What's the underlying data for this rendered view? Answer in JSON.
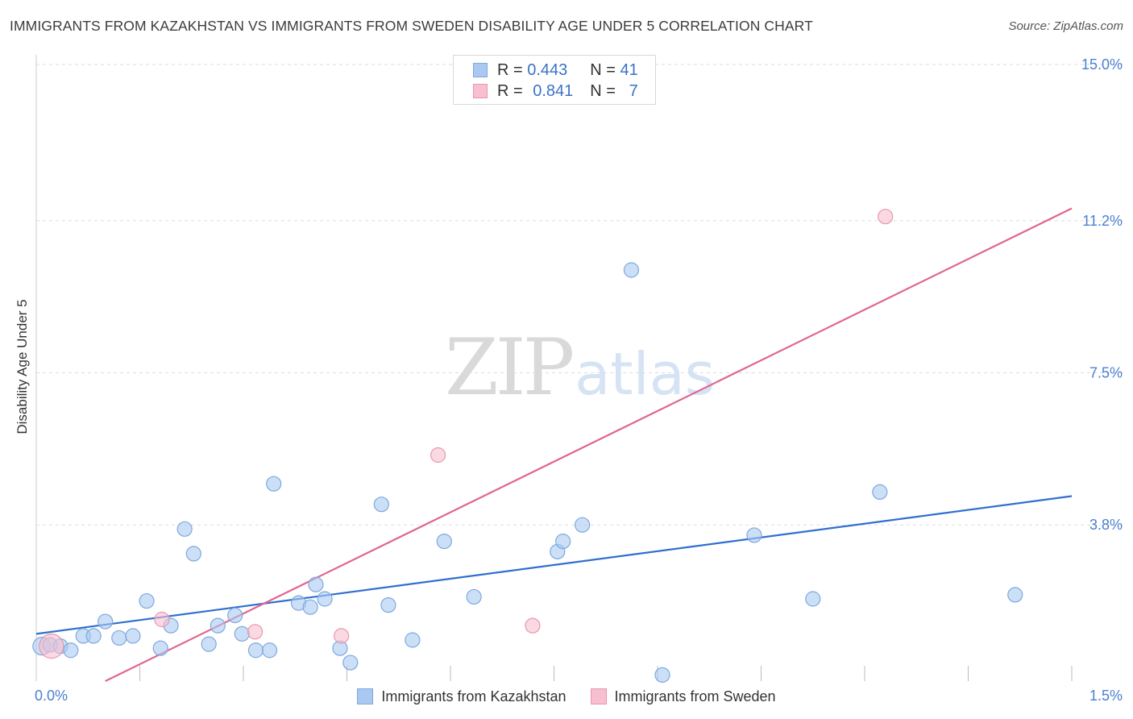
{
  "header": {
    "title": "IMMIGRANTS FROM KAZAKHSTAN VS IMMIGRANTS FROM SWEDEN DISABILITY AGE UNDER 5 CORRELATION CHART",
    "source": "Source: ZipAtlas.com"
  },
  "watermark": {
    "zip": "ZIP",
    "atlas": "atlas"
  },
  "legend_top": {
    "rows": [
      {
        "r_label": "R =",
        "r_value": "0.443",
        "n_label": "N =",
        "n_value": "41"
      },
      {
        "r_label": "R =",
        "r_value": "0.841",
        "n_label": "N =",
        "n_value": "7"
      }
    ]
  },
  "colors": {
    "kaz_fill": "#a9c9f2",
    "kaz_stroke": "#7fa8dd",
    "kaz_line": "#2f6fcf",
    "swe_fill": "#f7bfcf",
    "swe_stroke": "#e897ad",
    "swe_line": "#e06690",
    "grid": "#dddddd",
    "tick_text": "#4a7fd0"
  },
  "chart_data": {
    "type": "scatter",
    "title": "IMMIGRANTS FROM KAZAKHSTAN VS IMMIGRANTS FROM SWEDEN DISABILITY AGE UNDER 5 CORRELATION CHART",
    "xlabel": "",
    "ylabel": "Disability Age Under 5",
    "xlim": [
      0.0,
      1.5
    ],
    "ylim": [
      0.0,
      15.0
    ],
    "x_tick_labels": [
      "0.0%",
      "1.5%"
    ],
    "y_ticks": [
      3.8,
      7.5,
      11.2,
      15.0
    ],
    "y_tick_labels": [
      "3.8%",
      "7.5%",
      "11.2%",
      "15.0%"
    ],
    "grid": true,
    "legend_position": "top-center",
    "series": [
      {
        "name": "Immigrants from Kazakhstan",
        "r": 0.443,
        "n": 41,
        "trend": {
          "x": [
            0.0,
            1.5
          ],
          "y": [
            1.15,
            4.5
          ]
        },
        "points": [
          {
            "x": 0.008,
            "y": 0.85,
            "size": 11
          },
          {
            "x": 0.02,
            "y": 0.88,
            "size": 9
          },
          {
            "x": 0.035,
            "y": 0.85,
            "size": 9
          },
          {
            "x": 0.05,
            "y": 0.75,
            "size": 9
          },
          {
            "x": 0.068,
            "y": 1.1,
            "size": 9
          },
          {
            "x": 0.083,
            "y": 1.1,
            "size": 9
          },
          {
            "x": 0.1,
            "y": 1.45,
            "size": 9
          },
          {
            "x": 0.12,
            "y": 1.05,
            "size": 9
          },
          {
            "x": 0.14,
            "y": 1.1,
            "size": 9
          },
          {
            "x": 0.16,
            "y": 1.95,
            "size": 9
          },
          {
            "x": 0.18,
            "y": 0.8,
            "size": 9
          },
          {
            "x": 0.195,
            "y": 1.35,
            "size": 9
          },
          {
            "x": 0.215,
            "y": 3.7,
            "size": 9
          },
          {
            "x": 0.228,
            "y": 3.1,
            "size": 9
          },
          {
            "x": 0.25,
            "y": 0.9,
            "size": 9
          },
          {
            "x": 0.263,
            "y": 1.35,
            "size": 9
          },
          {
            "x": 0.288,
            "y": 1.6,
            "size": 9
          },
          {
            "x": 0.298,
            "y": 1.15,
            "size": 9
          },
          {
            "x": 0.318,
            "y": 0.75,
            "size": 9
          },
          {
            "x": 0.338,
            "y": 0.75,
            "size": 9
          },
          {
            "x": 0.344,
            "y": 4.8,
            "size": 9
          },
          {
            "x": 0.38,
            "y": 1.9,
            "size": 9
          },
          {
            "x": 0.397,
            "y": 1.8,
            "size": 9
          },
          {
            "x": 0.405,
            "y": 2.35,
            "size": 9
          },
          {
            "x": 0.418,
            "y": 2.0,
            "size": 9
          },
          {
            "x": 0.44,
            "y": 0.8,
            "size": 9
          },
          {
            "x": 0.455,
            "y": 0.45,
            "size": 9
          },
          {
            "x": 0.5,
            "y": 4.3,
            "size": 9
          },
          {
            "x": 0.51,
            "y": 1.85,
            "size": 9
          },
          {
            "x": 0.545,
            "y": 1.0,
            "size": 9
          },
          {
            "x": 0.591,
            "y": 3.4,
            "size": 9
          },
          {
            "x": 0.634,
            "y": 2.05,
            "size": 9
          },
          {
            "x": 0.755,
            "y": 3.15,
            "size": 9
          },
          {
            "x": 0.763,
            "y": 3.4,
            "size": 9
          },
          {
            "x": 0.791,
            "y": 3.8,
            "size": 9
          },
          {
            "x": 0.862,
            "y": 10.0,
            "size": 9
          },
          {
            "x": 0.907,
            "y": 0.15,
            "size": 9
          },
          {
            "x": 1.04,
            "y": 3.55,
            "size": 9
          },
          {
            "x": 1.125,
            "y": 2.0,
            "size": 9
          },
          {
            "x": 1.222,
            "y": 4.6,
            "size": 9
          },
          {
            "x": 1.418,
            "y": 2.1,
            "size": 9
          }
        ]
      },
      {
        "name": "Immigrants from Sweden",
        "r": 0.841,
        "n": 7,
        "trend": {
          "x": [
            0.1,
            1.5
          ],
          "y": [
            0.0,
            11.5
          ]
        },
        "points": [
          {
            "x": 0.022,
            "y": 0.85,
            "size": 15
          },
          {
            "x": 0.182,
            "y": 1.5,
            "size": 9
          },
          {
            "x": 0.317,
            "y": 1.2,
            "size": 9
          },
          {
            "x": 0.442,
            "y": 1.1,
            "size": 9
          },
          {
            "x": 0.582,
            "y": 5.5,
            "size": 9
          },
          {
            "x": 0.719,
            "y": 1.35,
            "size": 9
          },
          {
            "x": 1.23,
            "y": 11.3,
            "size": 9
          }
        ]
      }
    ]
  }
}
